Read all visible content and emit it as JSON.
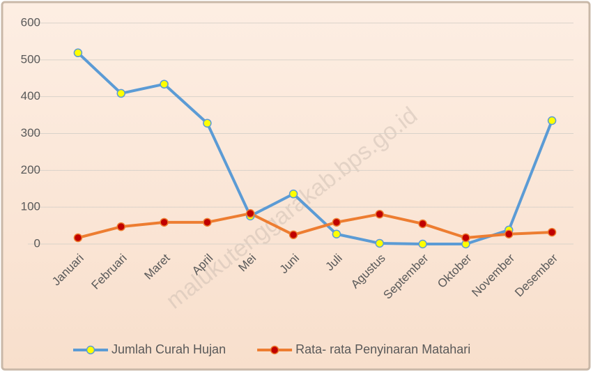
{
  "chart_data": {
    "type": "line",
    "watermark": "malukutenggarakab.bps.go.id",
    "categories": [
      "Januari",
      "Februari",
      "Maret",
      "April",
      "Mei",
      "Juni",
      "Juli",
      "Agustus",
      "September",
      "Oktober",
      "November",
      "Desember"
    ],
    "series": [
      {
        "name": "Jumlah Curah Hujan",
        "color": "#5b9bd5",
        "marker_color": "#ffff00",
        "values": [
          519,
          409,
          434,
          328,
          76,
          136,
          27,
          2,
          0,
          0,
          38,
          335
        ]
      },
      {
        "name": "Rata- rata Penyinaran Matahari",
        "color": "#ed7d31",
        "marker_color": "#c00000",
        "values": [
          17,
          47,
          59,
          59,
          83,
          25,
          59,
          81,
          55,
          17,
          27,
          32
        ]
      }
    ],
    "ylim": [
      0,
      600
    ],
    "yticks": [
      0,
      100,
      200,
      300,
      400,
      500,
      600
    ],
    "grid": true,
    "legend": "bottom"
  }
}
